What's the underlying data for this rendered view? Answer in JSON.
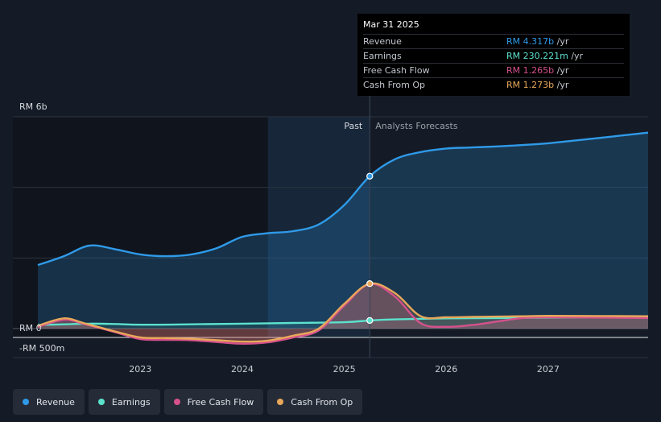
{
  "tooltip": {
    "date": "Mar 31 2025",
    "rows": [
      {
        "label": "Revenue",
        "value": "RM 4.317b",
        "unit": "/yr",
        "color": "#2f9ae8"
      },
      {
        "label": "Earnings",
        "value": "RM 230.221m",
        "unit": "/yr",
        "color": "#5ce1cc"
      },
      {
        "label": "Free Cash Flow",
        "value": "RM 1.265b",
        "unit": "/yr",
        "color": "#d6518c"
      },
      {
        "label": "Cash From Op",
        "value": "RM 1.273b",
        "unit": "/yr",
        "color": "#e8a85a"
      }
    ]
  },
  "legend": [
    {
      "label": "Revenue",
      "color": "#2f9ae8"
    },
    {
      "label": "Earnings",
      "color": "#5ce1cc"
    },
    {
      "label": "Free Cash Flow",
      "color": "#d6518c"
    },
    {
      "label": "Cash From Op",
      "color": "#e8a85a"
    }
  ],
  "chart_data": {
    "type": "line",
    "y_labels": [
      "RM 6b",
      "RM 0",
      "-RM 500m"
    ],
    "ylim": [
      -500,
      6000
    ],
    "xlim": [
      2021.75,
      2027.98
    ],
    "x_ticks": [
      2023,
      2024,
      2025,
      2026,
      2027
    ],
    "past_label": "Past",
    "forecast_label": "Analysts Forecasts",
    "divider_x": 2025.25,
    "highlight_start_x": 2024.25,
    "series": [
      {
        "name": "Revenue",
        "color": "#2f9ae8",
        "points": [
          [
            2021.995,
            1800
          ],
          [
            2022.25,
            2050
          ],
          [
            2022.5,
            2350
          ],
          [
            2022.75,
            2250
          ],
          [
            2023.0,
            2100
          ],
          [
            2023.25,
            2050
          ],
          [
            2023.5,
            2100
          ],
          [
            2023.75,
            2280
          ],
          [
            2024.0,
            2600
          ],
          [
            2024.25,
            2700
          ],
          [
            2024.5,
            2760
          ],
          [
            2024.75,
            2950
          ],
          [
            2025.0,
            3500
          ],
          [
            2025.25,
            4317
          ],
          [
            2025.5,
            4800
          ],
          [
            2025.75,
            5000
          ],
          [
            2026.0,
            5100
          ],
          [
            2026.25,
            5130
          ],
          [
            2026.5,
            5160
          ],
          [
            2026.75,
            5200
          ],
          [
            2027.0,
            5250
          ],
          [
            2027.5,
            5400
          ],
          [
            2027.98,
            5550
          ]
        ],
        "forecast_from": 2025.25,
        "marker_x": 2025.25
      },
      {
        "name": "Earnings",
        "color": "#5ce1cc",
        "points": [
          [
            2021.995,
            100
          ],
          [
            2022.25,
            120
          ],
          [
            2022.5,
            140
          ],
          [
            2022.75,
            130
          ],
          [
            2023.0,
            110
          ],
          [
            2023.5,
            120
          ],
          [
            2024.0,
            140
          ],
          [
            2024.5,
            160
          ],
          [
            2025.0,
            180
          ],
          [
            2025.25,
            230
          ],
          [
            2025.5,
            260
          ],
          [
            2026.0,
            290
          ],
          [
            2026.5,
            300
          ],
          [
            2027.0,
            310
          ],
          [
            2027.5,
            320
          ],
          [
            2027.98,
            330
          ]
        ],
        "forecast_from": 2025.25,
        "marker_x": 2025.25
      },
      {
        "name": "Free Cash Flow",
        "color": "#d6518c",
        "points": [
          [
            2021.995,
            50
          ],
          [
            2022.25,
            250
          ],
          [
            2022.45,
            130
          ],
          [
            2022.75,
            -100
          ],
          [
            2023.0,
            -300
          ],
          [
            2023.25,
            -320
          ],
          [
            2023.5,
            -330
          ],
          [
            2023.75,
            -380
          ],
          [
            2024.0,
            -430
          ],
          [
            2024.25,
            -390
          ],
          [
            2024.5,
            -250
          ],
          [
            2024.75,
            -50
          ],
          [
            2025.0,
            650
          ],
          [
            2025.25,
            1265
          ],
          [
            2025.5,
            900
          ],
          [
            2025.75,
            150
          ],
          [
            2026.0,
            50
          ],
          [
            2026.25,
            100
          ],
          [
            2026.5,
            200
          ],
          [
            2026.75,
            300
          ],
          [
            2027.0,
            320
          ],
          [
            2027.5,
            310
          ],
          [
            2027.98,
            300
          ]
        ],
        "forecast_from": 2025.25
      },
      {
        "name": "Cash From Op",
        "color": "#e8a85a",
        "points": [
          [
            2021.995,
            80
          ],
          [
            2022.25,
            290
          ],
          [
            2022.45,
            150
          ],
          [
            2022.75,
            -80
          ],
          [
            2023.0,
            -250
          ],
          [
            2023.25,
            -270
          ],
          [
            2023.5,
            -290
          ],
          [
            2023.75,
            -330
          ],
          [
            2024.0,
            -370
          ],
          [
            2024.25,
            -340
          ],
          [
            2024.5,
            -200
          ],
          [
            2024.75,
            0
          ],
          [
            2025.0,
            700
          ],
          [
            2025.25,
            1273
          ],
          [
            2025.5,
            1000
          ],
          [
            2025.75,
            350
          ],
          [
            2026.0,
            320
          ],
          [
            2026.25,
            330
          ],
          [
            2026.5,
            340
          ],
          [
            2026.75,
            350
          ],
          [
            2027.0,
            360
          ],
          [
            2027.5,
            355
          ],
          [
            2027.98,
            350
          ]
        ],
        "forecast_from": 2025.25,
        "marker_x": 2025.25
      }
    ]
  }
}
